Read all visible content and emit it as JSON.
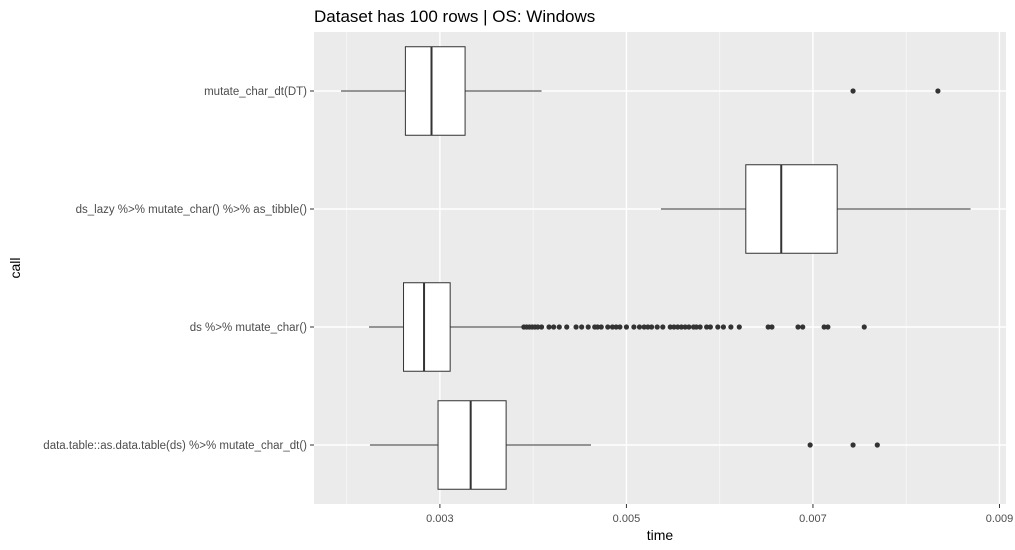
{
  "chart_data": {
    "type": "boxplot",
    "title": "Dataset has 100 rows | OS: Windows",
    "xlabel": "time",
    "ylabel": "call",
    "xlim": [
      0.00165,
      0.00907
    ],
    "x_ticks": [
      0.003,
      0.005,
      0.007,
      0.009
    ],
    "x_tick_labels": [
      "0.003",
      "0.005",
      "0.007",
      "0.009"
    ],
    "grid": true,
    "orientation": "horizontal",
    "categories": [
      "mutate_char_dt(DT)",
      "ds_lazy %>% mutate_char() %>% as_tibble()",
      "ds %>% mutate_char()",
      "data.table::as.data.table(ds) %>% mutate_char_dt()"
    ],
    "boxes": [
      {
        "category": "mutate_char_dt(DT)",
        "whisker_low": 0.00194,
        "q1": 0.00263,
        "median": 0.00291,
        "q3": 0.00327,
        "whisker_high": 0.00409,
        "outliers": [
          0.00743,
          0.00834
        ]
      },
      {
        "category": "ds_lazy %>% mutate_char() %>% as_tibble()",
        "whisker_low": 0.00537,
        "q1": 0.00628,
        "median": 0.00666,
        "q3": 0.00726,
        "whisker_high": 0.00869,
        "outliers": []
      },
      {
        "category": "ds %>% mutate_char()",
        "whisker_low": 0.00224,
        "q1": 0.00261,
        "median": 0.00283,
        "q3": 0.00311,
        "whisker_high": 0.00388,
        "outliers": [
          0.0039,
          0.00393,
          0.00396,
          0.00399,
          0.00402,
          0.00405,
          0.00409,
          0.00417,
          0.00422,
          0.00428,
          0.00436,
          0.00446,
          0.00452,
          0.00459,
          0.00466,
          0.00469,
          0.00473,
          0.0048,
          0.00485,
          0.00489,
          0.00493,
          0.005,
          0.00508,
          0.00514,
          0.00519,
          0.00523,
          0.00527,
          0.00533,
          0.00539,
          0.00547,
          0.00551,
          0.00555,
          0.00559,
          0.00563,
          0.00567,
          0.00572,
          0.00575,
          0.00579,
          0.00586,
          0.0059,
          0.00598,
          0.00604,
          0.00612,
          0.00621,
          0.00652,
          0.00656,
          0.00684,
          0.00689,
          0.00712,
          0.00716,
          0.00755
        ]
      },
      {
        "category": "data.table::as.data.table(ds) %>% mutate_char_dt()",
        "whisker_low": 0.00225,
        "q1": 0.00298,
        "median": 0.00333,
        "q3": 0.00371,
        "whisker_high": 0.00462,
        "outliers": [
          0.00697,
          0.00743,
          0.00769
        ]
      }
    ]
  }
}
